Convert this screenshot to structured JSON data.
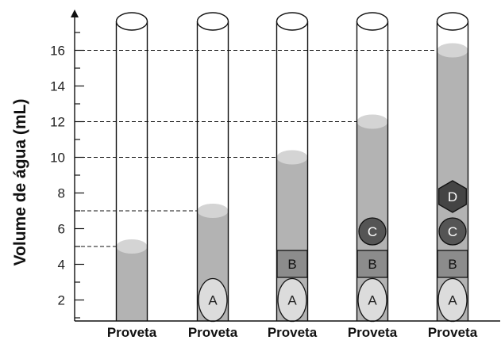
{
  "axis": {
    "title": "Volume de água (mL)",
    "ticks": [
      "2",
      "4",
      "6",
      "8",
      "10",
      "12",
      "14",
      "16"
    ],
    "tick_values": [
      2,
      4,
      6,
      8,
      10,
      12,
      14,
      16
    ],
    "min": 1,
    "max": 17
  },
  "cylinders": [
    {
      "label": "Proveta",
      "level": 5,
      "objects": []
    },
    {
      "label": "Proveta",
      "level": 7,
      "objects": [
        "A"
      ]
    },
    {
      "label": "Proveta",
      "level": 10,
      "objects": [
        "A",
        "B"
      ]
    },
    {
      "label": "Proveta",
      "level": 12,
      "objects": [
        "A",
        "B",
        "C"
      ]
    },
    {
      "label": "Proveta",
      "level": 16,
      "objects": [
        "A",
        "B",
        "C",
        "D"
      ]
    }
  ],
  "objects": {
    "A": {
      "label": "A",
      "shape": "ellipse",
      "fill": "#dcdcdc",
      "text_color": "#222222"
    },
    "B": {
      "label": "B",
      "shape": "square",
      "fill": "#8c8c8c",
      "text_color": "#111111"
    },
    "C": {
      "label": "C",
      "shape": "circle",
      "fill": "#555555",
      "text_color": "#ffffff"
    },
    "D": {
      "label": "D",
      "shape": "hexagon",
      "fill": "#444444",
      "text_color": "#ffffff"
    }
  },
  "colors": {
    "water": "#b3b3b3",
    "water_surface": "#d4d4d4",
    "outline": "#111111"
  }
}
